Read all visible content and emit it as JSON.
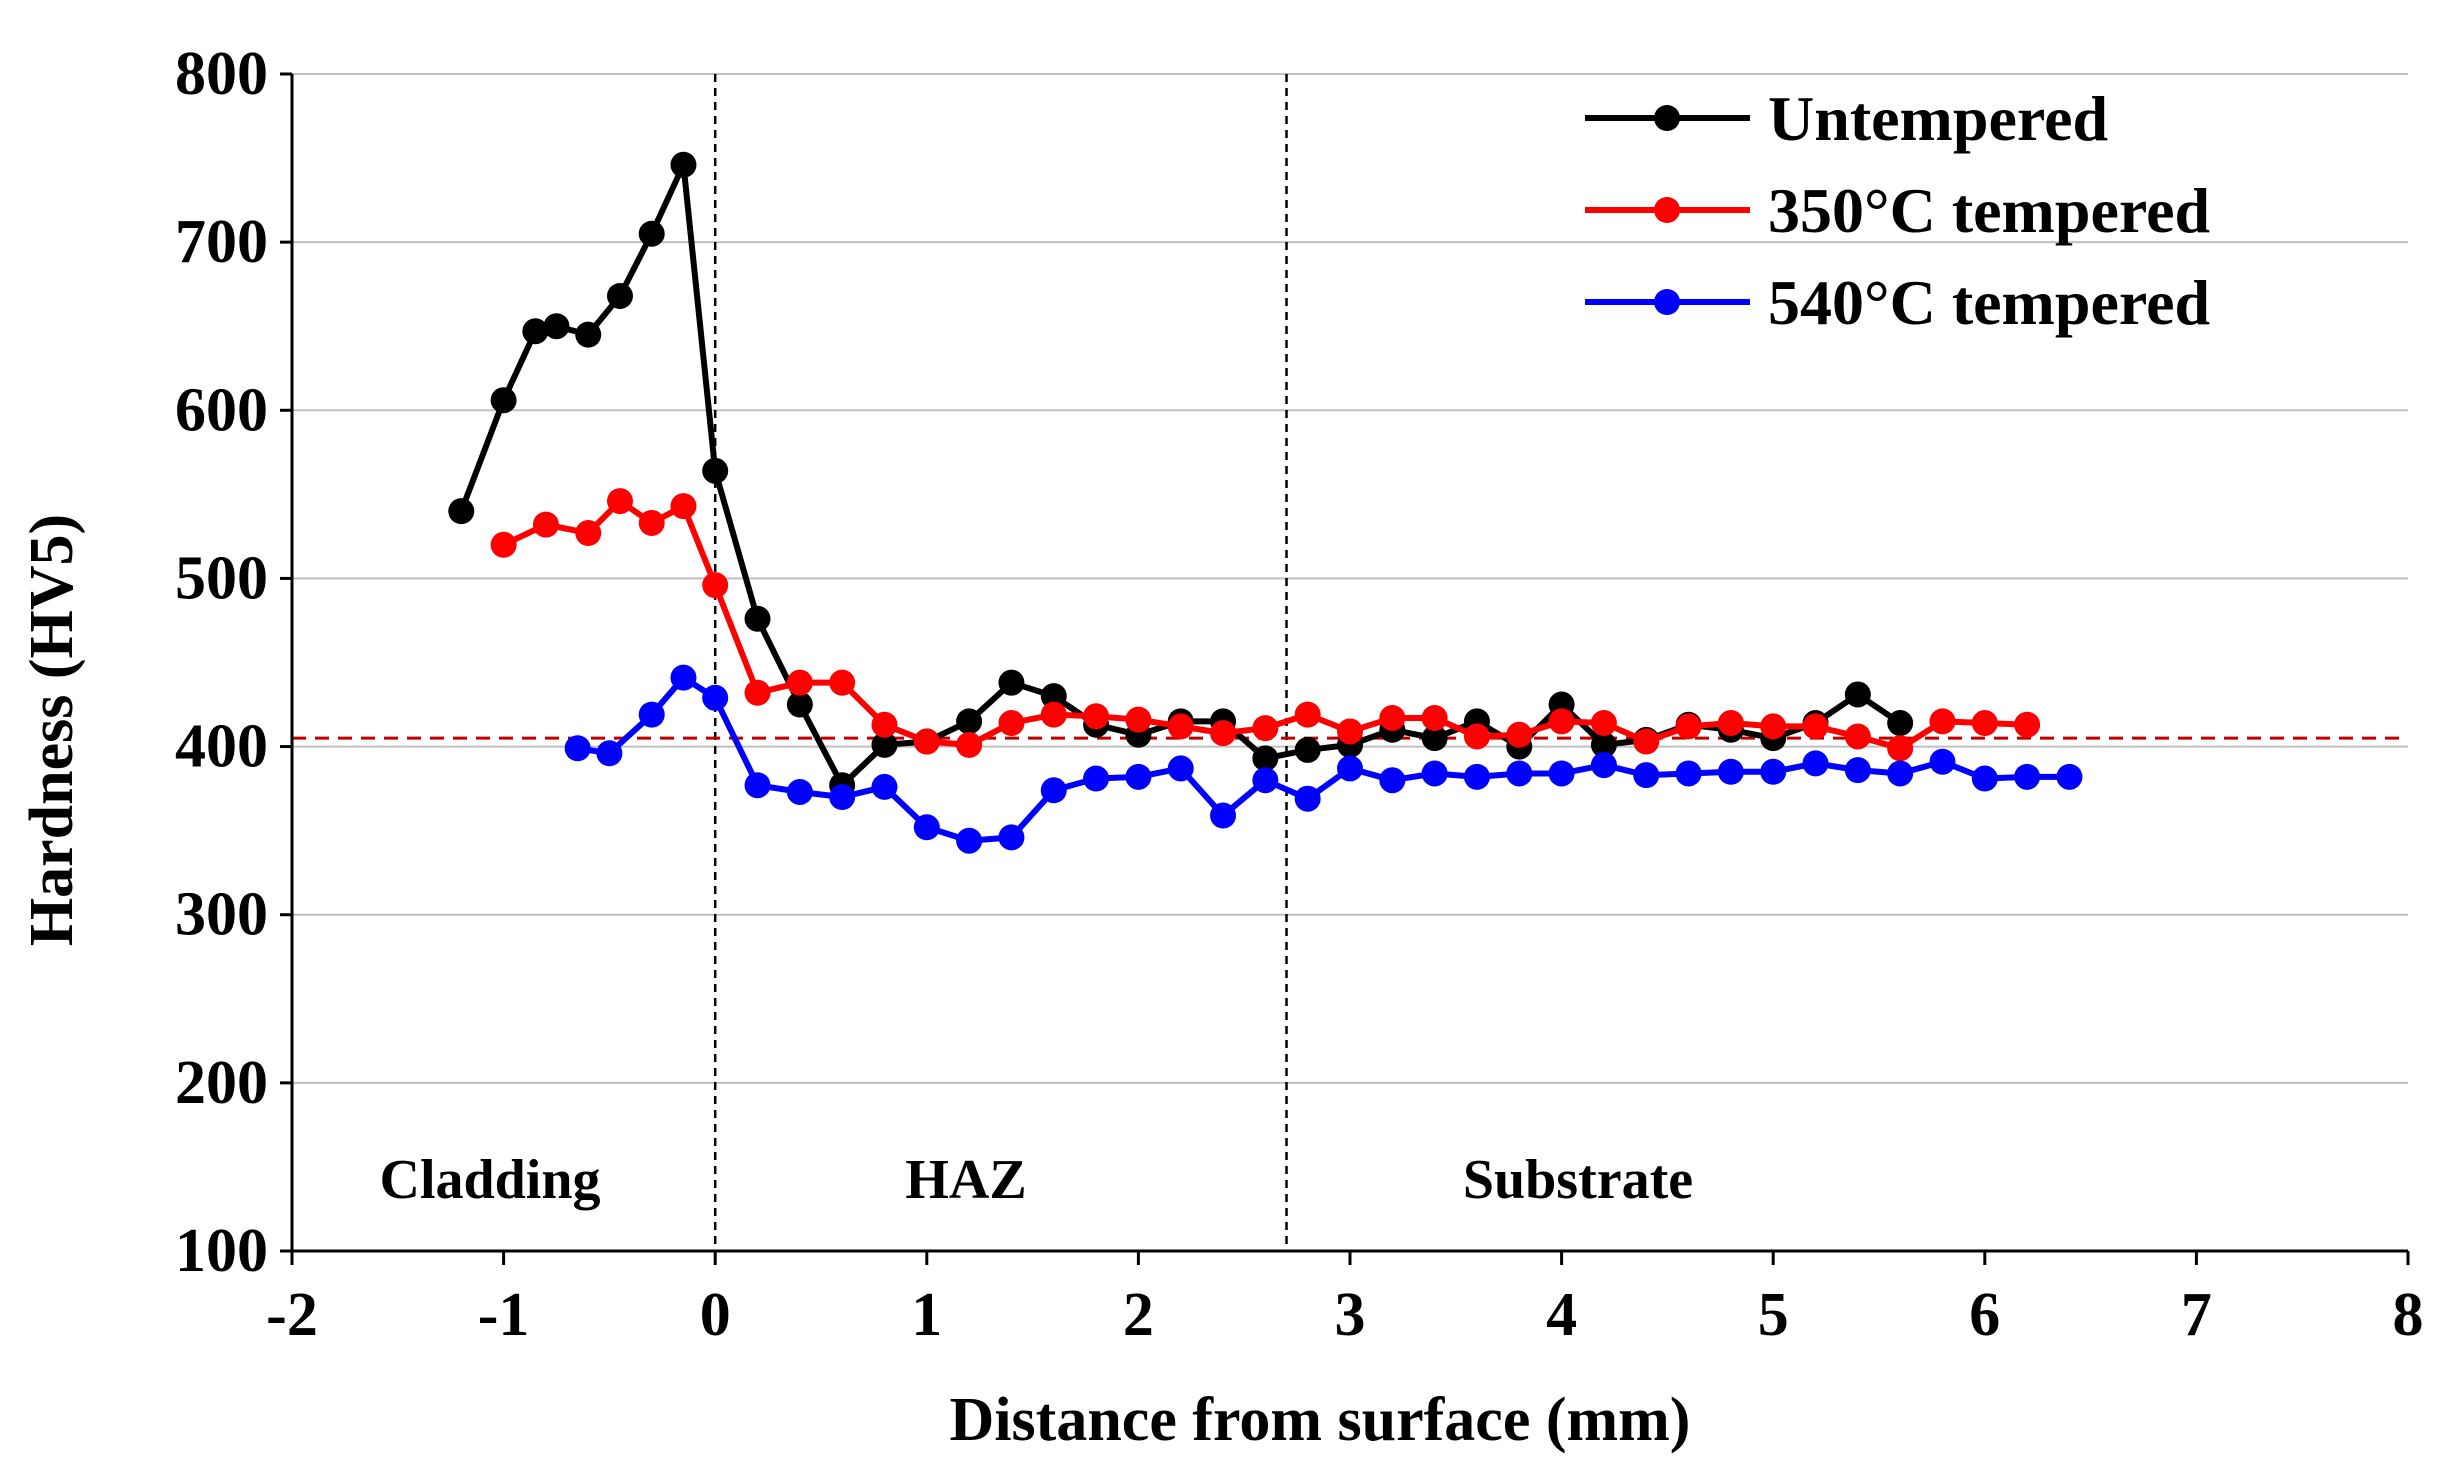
{
  "chart_data": {
    "type": "line",
    "title": "",
    "xlabel": "Distance from surface (mm)",
    "ylabel": "Hardness (HV5)",
    "xlim": [
      -2,
      8
    ],
    "ylim": [
      100,
      800
    ],
    "xticks": [
      "-2",
      "-1",
      "0",
      "1",
      "2",
      "3",
      "4",
      "5",
      "6",
      "7",
      "8"
    ],
    "yticks": [
      "100",
      "200",
      "300",
      "400",
      "500",
      "600",
      "700",
      "800"
    ],
    "grid": "horizontal",
    "legend_position": "top-right",
    "reference_line": {
      "y": 405,
      "style": "dashed",
      "color": "#c00000"
    },
    "boundaries": [
      0,
      2.7
    ],
    "regions": [
      "Cladding",
      "HAZ",
      "Substrate"
    ],
    "series": [
      {
        "name": "Untempered",
        "color": "#000000",
        "x": [
          -1.2,
          -1.0,
          -0.85,
          -0.75,
          -0.6,
          -0.45,
          -0.3,
          -0.15,
          0.0,
          0.2,
          0.4,
          0.6,
          0.8,
          1.0,
          1.2,
          1.4,
          1.6,
          1.8,
          2.0,
          2.2,
          2.4,
          2.6,
          2.8,
          3.0,
          3.2,
          3.4,
          3.6,
          3.8,
          4.0,
          4.2,
          4.4,
          4.6,
          4.8,
          5.0,
          5.2,
          5.4,
          5.6
        ],
        "values": [
          540,
          606,
          647,
          650,
          645,
          668,
          705,
          746,
          564,
          476,
          425,
          377,
          401,
          403,
          415,
          438,
          430,
          413,
          407,
          415,
          415,
          393,
          398,
          401,
          410,
          405,
          415,
          400,
          425,
          401,
          404,
          413,
          410,
          405,
          414,
          431,
          414
        ]
      },
      {
        "name": "350°C tempered",
        "color": "#ff0000",
        "x": [
          -1.0,
          -0.8,
          -0.6,
          -0.45,
          -0.3,
          -0.15,
          0.0,
          0.2,
          0.4,
          0.6,
          0.8,
          1.0,
          1.2,
          1.4,
          1.6,
          1.8,
          2.0,
          2.2,
          2.4,
          2.6,
          2.8,
          3.0,
          3.2,
          3.4,
          3.6,
          3.8,
          4.0,
          4.2,
          4.4,
          4.6,
          4.8,
          5.0,
          5.2,
          5.4,
          5.6,
          5.8,
          6.0,
          6.2
        ],
        "values": [
          520,
          532,
          527,
          546,
          533,
          543,
          496,
          432,
          438,
          438,
          413,
          403,
          401,
          414,
          419,
          418,
          416,
          412,
          408,
          411,
          419,
          409,
          417,
          417,
          406,
          407,
          415,
          414,
          403,
          412,
          414,
          412,
          412,
          406,
          399,
          415,
          414,
          413
        ]
      },
      {
        "name": "540°C tempered",
        "color": "#0000ff",
        "x": [
          -0.65,
          -0.5,
          -0.3,
          -0.15,
          0.0,
          0.2,
          0.4,
          0.6,
          0.8,
          1.0,
          1.2,
          1.4,
          1.6,
          1.8,
          2.0,
          2.2,
          2.4,
          2.6,
          2.8,
          3.0,
          3.2,
          3.4,
          3.6,
          3.8,
          4.0,
          4.2,
          4.4,
          4.6,
          4.8,
          5.0,
          5.2,
          5.4,
          5.6,
          5.8,
          6.0,
          6.2,
          6.4
        ],
        "values": [
          399,
          396,
          419,
          441,
          429,
          377,
          373,
          370,
          376,
          352,
          344,
          346,
          374,
          381,
          382,
          387,
          359,
          380,
          369,
          387,
          380,
          384,
          382,
          384,
          384,
          389,
          383,
          384,
          385,
          385,
          390,
          386,
          384,
          391,
          381,
          382,
          382
        ]
      }
    ]
  }
}
